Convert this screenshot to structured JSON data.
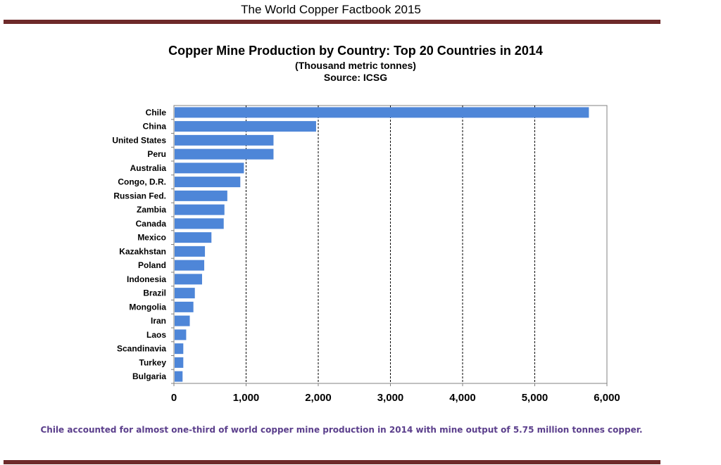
{
  "header": {
    "text": "The World Copper Factbook 2015"
  },
  "colors": {
    "bar": "#4e86d8",
    "rule": "#6e2a2a",
    "caption": "#5b3f8c"
  },
  "chart_data": {
    "type": "bar",
    "orientation": "horizontal",
    "title": "Copper Mine Production by Country: Top 20 Countries in 2014",
    "subtitle": "(Thousand metric tonnes)",
    "source": "Source: ICSG",
    "categories": [
      "Chile",
      "China",
      "United States",
      "Peru",
      "Australia",
      "Congo, D.R.",
      "Russian Fed.",
      "Zambia",
      "Canada",
      "Mexico",
      "Kazakhstan",
      "Poland",
      "Indonesia",
      "Brazil",
      "Mongolia",
      "Iran",
      "Laos",
      "Scandinavia",
      "Turkey",
      "Bulgaria"
    ],
    "values": [
      5750,
      1970,
      1380,
      1380,
      970,
      920,
      740,
      700,
      690,
      520,
      430,
      420,
      390,
      290,
      270,
      220,
      170,
      130,
      130,
      120
    ],
    "x_ticks": [
      "0",
      "1,000",
      "2,000",
      "3,000",
      "4,000",
      "5,000",
      "6,000"
    ],
    "xlim": [
      0,
      6000
    ],
    "grid": "vertical dashed",
    "caption": "Chile accounted for almost one-third of world copper mine production in 2014 with mine output of 5.75 million tonnes copper."
  }
}
